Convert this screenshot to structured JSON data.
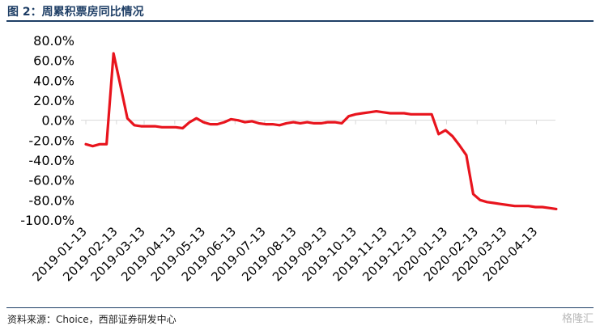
{
  "header": {
    "title": "图 2：周累积票房同比情况"
  },
  "footer": {
    "source": "资料来源：Choice，西部证券研发中心",
    "watermark": "格隆汇"
  },
  "colors": {
    "series": "#e8141d",
    "title": "#1f3f66"
  },
  "chart_data": {
    "type": "line",
    "title": "图 2：周累积票房同比情况",
    "xlabel": "",
    "ylabel": "",
    "ylim": [
      -100,
      80
    ],
    "y_ticks": [
      80,
      60,
      40,
      20,
      0,
      -20,
      -40,
      -60,
      -80,
      -100
    ],
    "y_tick_labels": [
      "80.0%",
      "60.0%",
      "40.0%",
      "20.0%",
      "0.0%",
      "-20.0%",
      "-40.0%",
      "-60.0%",
      "-80.0%",
      "-100.0%"
    ],
    "x_tick_labels": [
      "2019-01-13",
      "2019-02-13",
      "2019-03-13",
      "2019-04-13",
      "2019-05-13",
      "2019-06-13",
      "2019-07-13",
      "2019-08-13",
      "2019-09-13",
      "2019-10-13",
      "2019-11-13",
      "2019-12-13",
      "2020-01-13",
      "2020-02-13",
      "2020-03-13",
      "2020-04-13"
    ],
    "grid": false,
    "series": [
      {
        "x": [
          "2019-01-13",
          "2019-01-20",
          "2019-01-27",
          "2019-02-03",
          "2019-02-10",
          "2019-02-17",
          "2019-02-24",
          "2019-03-03",
          "2019-03-10",
          "2019-03-17",
          "2019-03-24",
          "2019-03-31",
          "2019-04-07",
          "2019-04-14",
          "2019-04-21",
          "2019-04-28",
          "2019-05-05",
          "2019-05-12",
          "2019-05-19",
          "2019-05-26",
          "2019-06-02",
          "2019-06-09",
          "2019-06-16",
          "2019-06-23",
          "2019-06-30",
          "2019-07-07",
          "2019-07-14",
          "2019-07-21",
          "2019-07-28",
          "2019-08-04",
          "2019-08-11",
          "2019-08-18",
          "2019-08-25",
          "2019-09-01",
          "2019-09-08",
          "2019-09-15",
          "2019-09-22",
          "2019-09-29",
          "2019-10-06",
          "2019-10-13",
          "2019-10-20",
          "2019-10-27",
          "2019-11-03",
          "2019-11-10",
          "2019-11-17",
          "2019-11-24",
          "2019-12-01",
          "2019-12-08",
          "2019-12-15",
          "2019-12-22",
          "2019-12-29",
          "2020-01-05",
          "2020-01-12",
          "2020-01-19",
          "2020-01-26",
          "2020-02-02",
          "2020-02-09",
          "2020-02-16",
          "2020-02-23",
          "2020-03-01",
          "2020-03-08",
          "2020-03-15",
          "2020-03-22",
          "2020-03-29",
          "2020-04-05",
          "2020-04-12",
          "2020-04-19",
          "2020-04-26",
          "2020-05-03"
        ],
        "values": [
          -24,
          -26,
          -24,
          -24,
          67,
          35,
          2,
          -5,
          -6,
          -6,
          -6,
          -7,
          -7,
          -7,
          -8,
          -2,
          2,
          -2,
          -4,
          -4,
          -2,
          1,
          0,
          -2,
          -1,
          -3,
          -4,
          -4,
          -5,
          -3,
          -2,
          -3,
          -2,
          -3,
          -3,
          -2,
          -2,
          -3,
          4,
          6,
          7,
          8,
          9,
          8,
          7,
          7,
          7,
          6,
          6,
          6,
          6,
          -14,
          -10,
          -16,
          -25,
          -35,
          -74,
          -80,
          -82,
          -83,
          -84,
          -85,
          -86,
          -86,
          -86,
          -87,
          -87,
          -88,
          -89
        ]
      }
    ]
  }
}
